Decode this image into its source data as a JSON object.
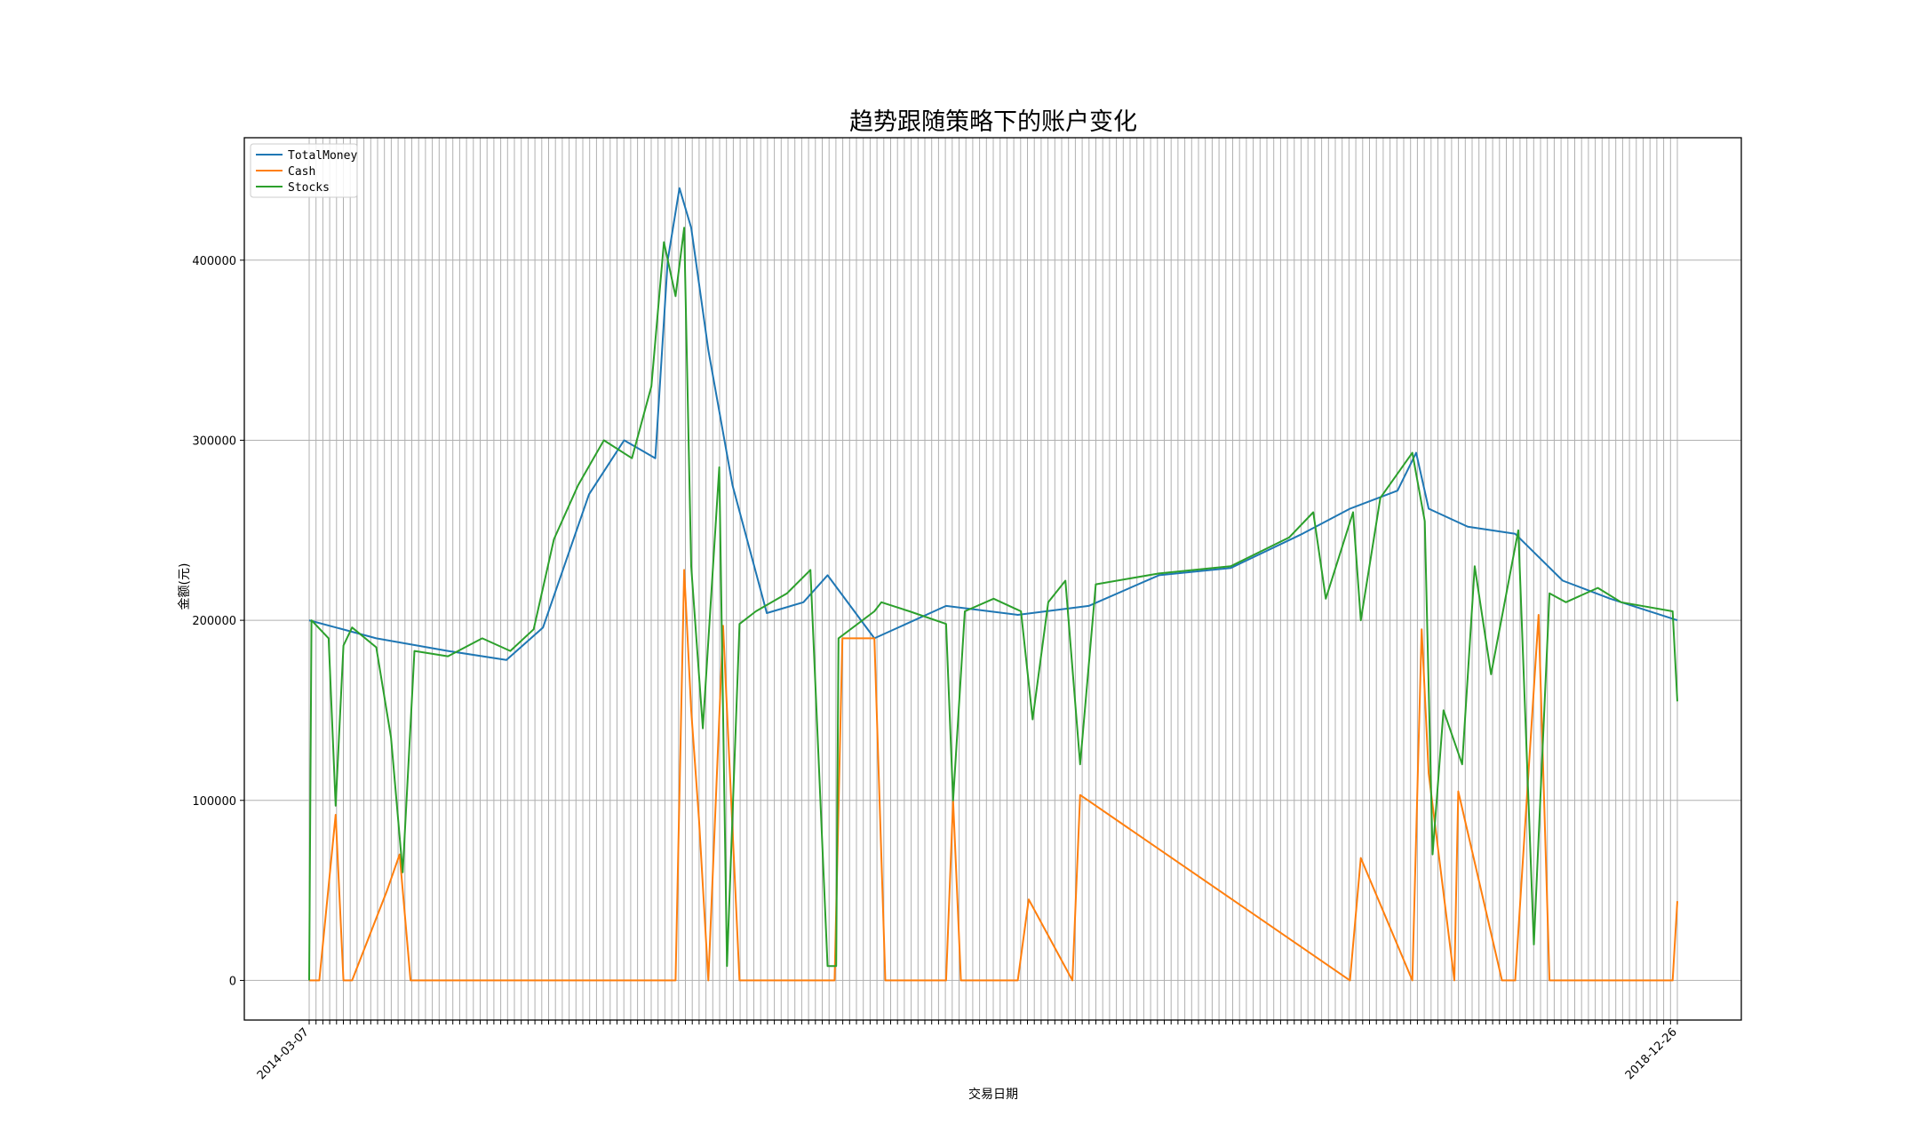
{
  "chart_data": {
    "type": "line",
    "title": "趋势跟随策略下的账户变化",
    "xlabel": "交易日期",
    "ylabel": "金额(元)",
    "ylim": [
      -22000,
      468000
    ],
    "grid": true,
    "legend_position": "top-left",
    "yticks": [
      "0",
      "100000",
      "200000",
      "300000",
      "400000"
    ],
    "x_range": [
      "2014-03-07",
      "2018-12-26"
    ],
    "x_tick_labels": [
      "2014-03-07",
      "2018-12-26"
    ],
    "series": [
      {
        "name": "TotalMoney",
        "color": "#1f77b4",
        "x": [
          "2014-03-07",
          "2014-06-01",
          "2014-09-01",
          "2014-11-15",
          "2015-01-01",
          "2015-03-01",
          "2015-04-15",
          "2015-05-25",
          "2015-06-10",
          "2015-06-25",
          "2015-07-10",
          "2015-08-01",
          "2015-09-01",
          "2015-10-15",
          "2015-12-01",
          "2016-01-01",
          "2016-03-01",
          "2016-06-01",
          "2016-09-01",
          "2016-12-01",
          "2017-03-01",
          "2017-06-01",
          "2017-09-01",
          "2017-11-01",
          "2018-01-01",
          "2018-01-25",
          "2018-02-10",
          "2018-04-01",
          "2018-06-01",
          "2018-08-01",
          "2018-10-01",
          "2018-12-26"
        ],
        "values": [
          200000,
          190000,
          183000,
          178000,
          196000,
          270000,
          300000,
          290000,
          400000,
          440000,
          418000,
          350000,
          275000,
          204000,
          210000,
          225000,
          190000,
          208000,
          203000,
          208000,
          225000,
          229000,
          248000,
          262000,
          272000,
          293000,
          262000,
          252000,
          248000,
          222000,
          212000,
          200000
        ]
      },
      {
        "name": "Cash",
        "color": "#ff7f0e",
        "x": [
          "2014-03-07",
          "2014-03-20",
          "2014-04-10",
          "2014-04-20",
          "2014-05-01",
          "2014-06-15",
          "2014-07-01",
          "2014-07-15",
          "2015-06-01",
          "2015-06-20",
          "2015-07-01",
          "2015-07-10",
          "2015-07-20",
          "2015-08-01",
          "2015-08-20",
          "2015-09-10",
          "2015-10-01",
          "2015-10-05",
          "2016-01-10",
          "2016-01-20",
          "2016-03-01",
          "2016-03-15",
          "2016-06-01",
          "2016-06-10",
          "2016-06-20",
          "2016-09-01",
          "2016-09-15",
          "2016-11-10",
          "2016-11-20",
          "2017-11-01",
          "2017-11-15",
          "2018-01-20",
          "2018-02-01",
          "2018-02-10",
          "2018-03-15",
          "2018-03-20",
          "2018-05-15",
          "2018-06-01",
          "2018-07-01",
          "2018-07-15",
          "2018-12-20",
          "2018-12-26"
        ],
        "values": [
          0,
          0,
          92000,
          0,
          0,
          50000,
          70000,
          0,
          0,
          0,
          228000,
          150000,
          90000,
          0,
          197000,
          0,
          0,
          0,
          0,
          190000,
          190000,
          0,
          0,
          100000,
          0,
          0,
          45000,
          0,
          103000,
          0,
          68000,
          0,
          195000,
          115000,
          0,
          105000,
          0,
          0,
          203000,
          0,
          0,
          44000
        ]
      },
      {
        "name": "Stocks",
        "color": "#2ca02c",
        "x": [
          "2014-03-07",
          "2014-03-10",
          "2014-04-01",
          "2014-04-10",
          "2014-04-20",
          "2014-05-01",
          "2014-06-01",
          "2014-06-20",
          "2014-07-05",
          "2014-07-20",
          "2014-09-01",
          "2014-10-15",
          "2014-11-20",
          "2014-12-20",
          "2015-01-15",
          "2015-02-15",
          "2015-03-20",
          "2015-04-25",
          "2015-05-20",
          "2015-06-05",
          "2015-06-20",
          "2015-07-01",
          "2015-07-10",
          "2015-07-25",
          "2015-08-15",
          "2015-08-25",
          "2015-09-10",
          "2015-10-01",
          "2015-11-10",
          "2015-12-10",
          "2016-01-01",
          "2016-01-12",
          "2016-01-15",
          "2016-03-01",
          "2016-03-10",
          "2016-04-15",
          "2016-06-01",
          "2016-06-10",
          "2016-06-25",
          "2016-08-01",
          "2016-09-05",
          "2016-09-20",
          "2016-10-10",
          "2016-11-01",
          "2016-11-20",
          "2016-12-10",
          "2017-03-01",
          "2017-06-01",
          "2017-08-15",
          "2017-09-15",
          "2017-10-01",
          "2017-11-05",
          "2017-11-15",
          "2017-12-10",
          "2018-01-20",
          "2018-02-05",
          "2018-02-15",
          "2018-03-01",
          "2018-03-25",
          "2018-04-10",
          "2018-05-01",
          "2018-06-05",
          "2018-06-25",
          "2018-07-15",
          "2018-08-05",
          "2018-09-15",
          "2018-10-15",
          "2018-12-20",
          "2018-12-26"
        ],
        "values": [
          0,
          200000,
          190000,
          97000,
          186000,
          196000,
          185000,
          135000,
          60000,
          183000,
          180000,
          190000,
          183000,
          195000,
          245000,
          275000,
          300000,
          290000,
          330000,
          410000,
          380000,
          418000,
          230000,
          140000,
          285000,
          8000,
          198000,
          205000,
          215000,
          228000,
          8000,
          8000,
          190000,
          205000,
          210000,
          205000,
          198000,
          100000,
          205000,
          212000,
          205000,
          145000,
          210000,
          222000,
          120000,
          220000,
          226000,
          230000,
          246000,
          260000,
          212000,
          260000,
          200000,
          268000,
          293000,
          255000,
          70000,
          150000,
          120000,
          230000,
          170000,
          250000,
          20000,
          215000,
          210000,
          218000,
          210000,
          205000,
          155000
        ]
      }
    ]
  }
}
